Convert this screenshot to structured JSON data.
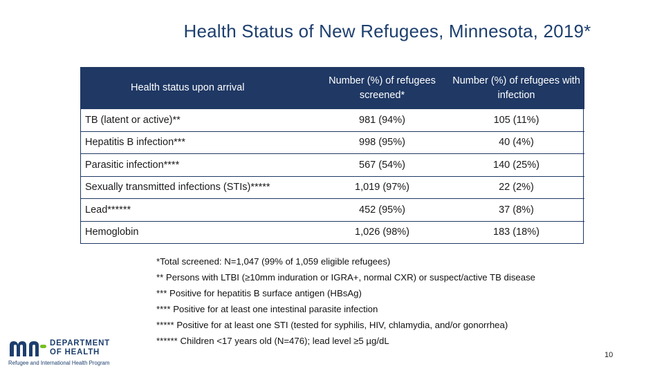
{
  "title": "Health Status of New Refugees, Minnesota, 2019*",
  "table": {
    "headers": [
      "Health status upon arrival",
      "Number (%) of refugees screened*",
      "Number (%) of refugees with infection"
    ],
    "rows": [
      {
        "status": "TB (latent or active)**",
        "screened": "981 (94%)",
        "infection": "105 (11%)"
      },
      {
        "status": "Hepatitis B infection***",
        "screened": "998 (95%)",
        "infection": "40 (4%)"
      },
      {
        "status": "Parasitic infection****",
        "screened": "567 (54%)",
        "infection": "140 (25%)"
      },
      {
        "status": "Sexually transmitted infections (STIs)*****",
        "screened": "1,019 (97%)",
        "infection": "22 (2%)"
      },
      {
        "status": "Lead******",
        "screened": "452 (95%)",
        "infection": "37 (8%)"
      },
      {
        "status": "Hemoglobin",
        "screened": "1,026 (98%)",
        "infection": "183 (18%)"
      }
    ]
  },
  "footnotes": [
    "*Total screened: N=1,047 (99% of 1,059 eligible refugees)",
    "** Persons with LTBI (≥10mm induration or IGRA+, normal CXR) or suspect/active TB disease",
    "*** Positive for hepatitis B surface antigen (HBsAg)",
    "**** Positive for at least one intestinal parasite infection",
    "***** Positive for at least one STI (tested for syphilis, HIV, chlamydia, and/or gonorrhea)",
    "****** Children <17 years old (N=476); lead level ≥5 µg/dL"
  ],
  "logo": {
    "line1": "DEPARTMENT",
    "line2": "OF HEALTH",
    "subtitle": "Refugee and International Health Program",
    "mark_color": "#1d3f6e",
    "accent_color": "#78be20"
  },
  "page_number": "10"
}
